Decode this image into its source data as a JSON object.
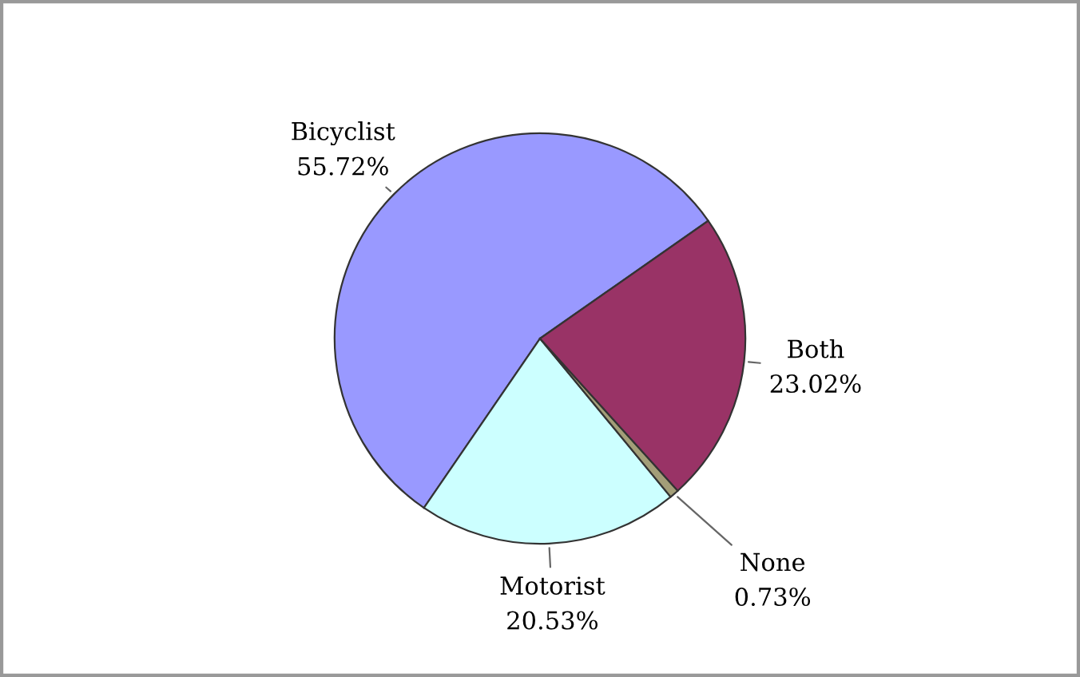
{
  "chart_data": {
    "type": "pie",
    "categories": [
      "Bicyclist",
      "Motorist",
      "None",
      "Both"
    ],
    "values": [
      55.72,
      20.53,
      0.73,
      23.02
    ],
    "value_labels": [
      "55.72%",
      "20.53%",
      "0.73%",
      "23.02%"
    ],
    "colors": [
      "#9999ff",
      "#ccffff",
      "#a39e78",
      "#993366"
    ]
  }
}
